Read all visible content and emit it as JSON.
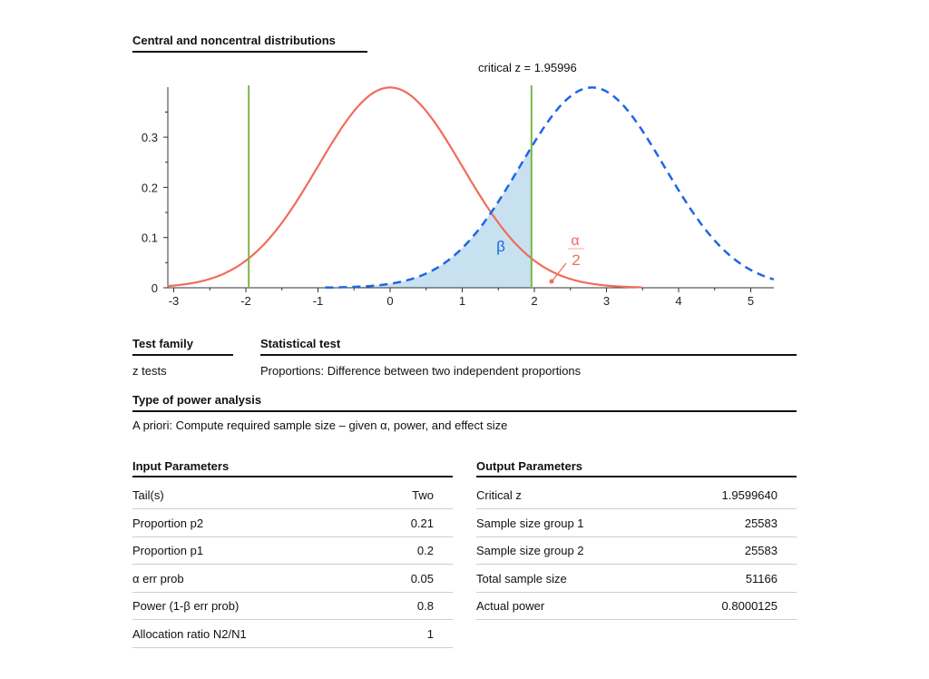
{
  "chart_data": {
    "type": "line",
    "title": "Central and noncentral distributions",
    "annotation": "critical z = 1.95996",
    "xlim": [
      -3.09,
      5.32
    ],
    "ylim": [
      0,
      0.4
    ],
    "xticks": [
      "-3",
      "-2",
      "-1",
      "0",
      "1",
      "2",
      "3",
      "4",
      "5"
    ],
    "yticks": [
      "0",
      "0.1",
      "0.2",
      "0.3"
    ],
    "series": [
      {
        "distribution": "normal",
        "mean": 0,
        "sd": 1,
        "range": [
          -3.09,
          3.5
        ],
        "color": "#f26b5b",
        "style": "solid"
      },
      {
        "distribution": "normal",
        "mean": 2.8,
        "sd": 1,
        "range": [
          -0.9,
          5.32
        ],
        "color": "#1f66e5",
        "style": "dashed"
      }
    ],
    "critical_lines": [
      -1.95996,
      1.95996
    ],
    "critical_color": "#7ab648",
    "shade_color": "#c7e1f0",
    "beta_label": "β",
    "alpha_label": {
      "num": "α",
      "den": "2"
    }
  },
  "test_family": {
    "header": "Test family",
    "value": "z tests"
  },
  "statistical_test": {
    "header": "Statistical test",
    "value": "Proportions: Difference between two independent proportions"
  },
  "power_analysis": {
    "header": "Type of power analysis",
    "value": "A priori: Compute required sample size – given α, power, and effect size"
  },
  "input": {
    "header": "Input Parameters",
    "rows": [
      [
        "Tail(s)",
        "Two"
      ],
      [
        "Proportion p2",
        "0.21"
      ],
      [
        "Proportion p1",
        "0.2"
      ],
      [
        "α err prob",
        "0.05"
      ],
      [
        "Power (1-β err prob)",
        "0.8"
      ],
      [
        "Allocation ratio N2/N1",
        "1"
      ]
    ]
  },
  "output": {
    "header": "Output Parameters",
    "rows": [
      [
        "Critical z",
        "1.9599640"
      ],
      [
        "Sample size group 1",
        "25583"
      ],
      [
        "Sample size group 2",
        "25583"
      ],
      [
        "Total sample size",
        "51166"
      ],
      [
        "Actual power",
        "0.8000125"
      ]
    ]
  }
}
